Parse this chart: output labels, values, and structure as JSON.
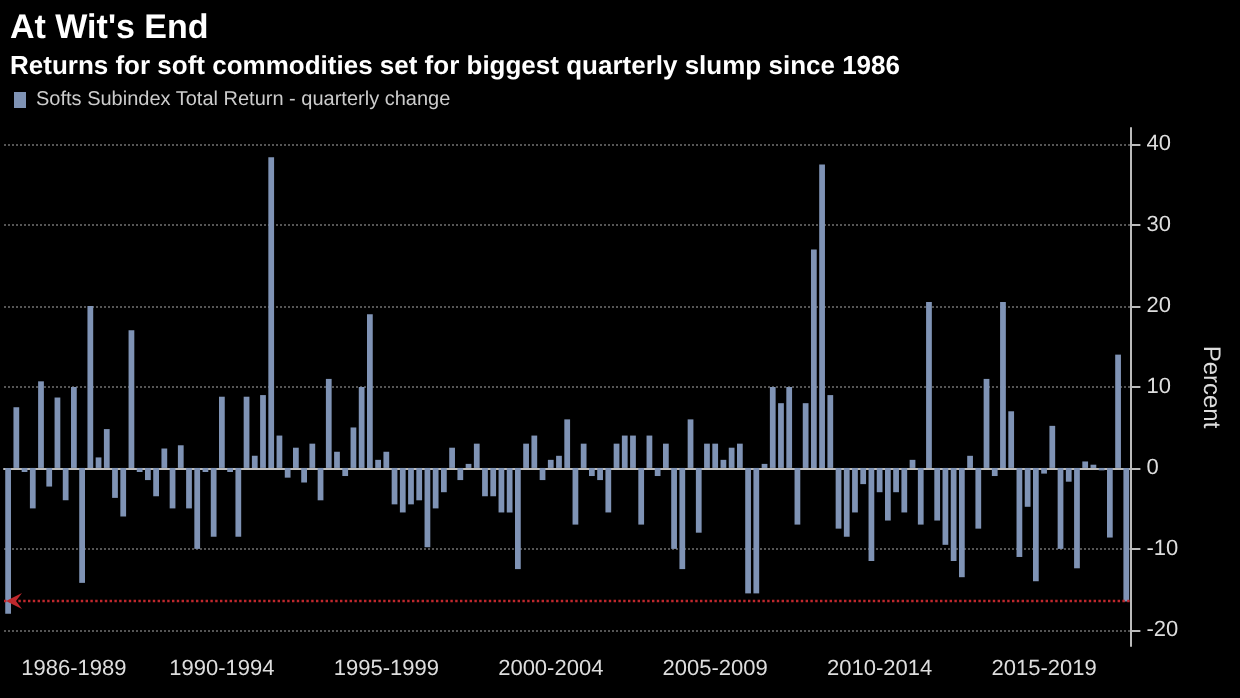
{
  "chart_data": {
    "type": "bar",
    "title": "At Wit's End",
    "subtitle": "Returns for soft commodities set for biggest quarterly slump since 1986",
    "ylabel": "Percent",
    "categories": [
      null,
      null,
      null,
      null,
      null,
      null,
      null,
      null,
      "1986-1989",
      null,
      null,
      null,
      null,
      null,
      null,
      null,
      null,
      null,
      null,
      null,
      null,
      null,
      null,
      null,
      null,
      null,
      "1990-1994",
      null,
      null,
      null,
      null,
      null,
      null,
      null,
      null,
      null,
      null,
      null,
      null,
      null,
      null,
      null,
      null,
      null,
      null,
      null,
      "1995-1999",
      null,
      null,
      null,
      null,
      null,
      null,
      null,
      null,
      null,
      null,
      null,
      null,
      null,
      null,
      null,
      null,
      null,
      null,
      null,
      "2000-2004",
      null,
      null,
      null,
      null,
      null,
      null,
      null,
      null,
      null,
      null,
      null,
      null,
      null,
      null,
      null,
      null,
      null,
      null,
      null,
      "2005-2009",
      null,
      null,
      null,
      null,
      null,
      null,
      null,
      null,
      null,
      null,
      null,
      null,
      null,
      null,
      null,
      null,
      null,
      null,
      null,
      "2010-2014",
      null,
      null,
      null,
      null,
      null,
      null,
      null,
      null,
      null,
      null,
      null,
      null,
      null,
      null,
      null,
      null,
      null,
      null,
      null,
      "2015-2019",
      null,
      null,
      null,
      null,
      null,
      null,
      null,
      null,
      null,
      null
    ],
    "series": [
      {
        "name": "Softs Subindex Total Return - quarterly change",
        "color": "#7f93b5",
        "values": [
          -18,
          7.5,
          -0.5,
          -5,
          10.7,
          -2.3,
          8.7,
          -4,
          10,
          -14.2,
          20,
          1.3,
          4.8,
          -3.7,
          -6,
          17,
          -0.5,
          -1.5,
          -3.5,
          2.4,
          -5,
          2.8,
          -5,
          -10,
          -0.5,
          -8.5,
          8.8,
          -0.5,
          -8.5,
          8.8,
          1.5,
          9,
          38.4,
          4,
          -1.2,
          2.5,
          -1.8,
          3,
          -4,
          11,
          2,
          -1,
          5,
          10,
          19,
          1,
          2,
          -4.5,
          -5.5,
          -4.5,
          -4,
          -9.8,
          -5,
          -3,
          2.5,
          -1.5,
          0.5,
          3,
          -3.5,
          -3.5,
          -5.5,
          -5.5,
          -12.5,
          3,
          4,
          -1.5,
          1,
          1.5,
          6,
          -7,
          3,
          -1,
          -1.5,
          -5.5,
          3,
          4,
          4,
          -7,
          4,
          -1,
          3,
          -10,
          -12.5,
          6,
          -8,
          3,
          3,
          1,
          2.5,
          3,
          -15.5,
          -15.5,
          0.5,
          10,
          8,
          10,
          -7,
          8,
          27,
          37.5,
          9,
          -7.5,
          -8.5,
          -5.5,
          -2,
          -11.5,
          -3,
          -6.5,
          -3,
          -5.5,
          1,
          -7,
          20.5,
          -6.5,
          -9.5,
          -11.5,
          -13.5,
          1.5,
          -7.5,
          11,
          -1,
          20.5,
          7,
          -11,
          -4.8,
          -14,
          -0.7,
          5.2,
          -10,
          -1.7,
          -12.4,
          0.8,
          0.4,
          -0.3,
          -8.6,
          14,
          -16.5
        ]
      }
    ],
    "ylim": [
      -22,
      42
    ],
    "yticks": [
      -20,
      -10,
      0,
      10,
      20,
      30,
      40
    ],
    "grid": "y",
    "legend": "top left",
    "ref_lines": [
      {
        "axis": "y",
        "value": -16.5,
        "color": "#c0282d",
        "line_style": "dotted"
      }
    ]
  }
}
